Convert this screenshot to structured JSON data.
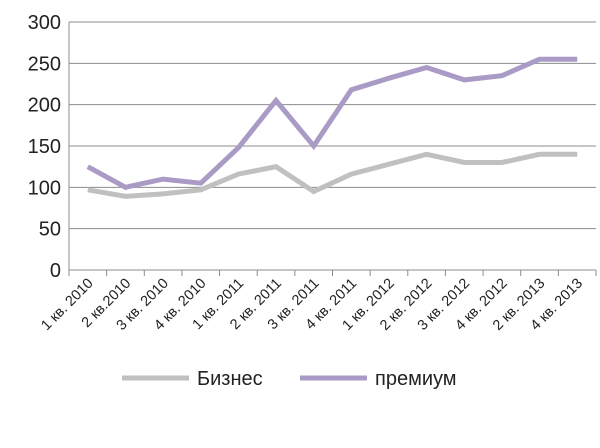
{
  "chart_data": {
    "type": "line",
    "title": "",
    "xlabel": "",
    "ylabel": "",
    "ylim": [
      0,
      300
    ],
    "yticks": [
      "0",
      "50",
      "100",
      "150",
      "200",
      "250",
      "300"
    ],
    "categories": [
      "1 кв. 2010",
      "2 кв.2010",
      "3 кв. 2010",
      "4 кв. 2010",
      "1 кв. 2011",
      "2 кв. 2011",
      "3 кв. 2011",
      "4 кв. 2011",
      "1 кв. 2012",
      "2 кв. 2012",
      "3 кв. 2012",
      "4 кв. 2012",
      "2 кв. 2013",
      "4 кв. 2013"
    ],
    "series": [
      {
        "name": "Бизнес",
        "color": "#c0c0c0",
        "values": [
          97,
          89,
          92,
          97,
          116,
          125,
          95,
          116,
          128,
          140,
          130,
          130,
          140,
          140
        ]
      },
      {
        "name": "премиум",
        "color": "#a99bc6",
        "values": [
          125,
          100,
          110,
          105,
          148,
          205,
          150,
          218,
          232,
          245,
          230,
          235,
          255,
          255
        ]
      }
    ],
    "grid": "horizontal",
    "legend_position": "bottom"
  }
}
